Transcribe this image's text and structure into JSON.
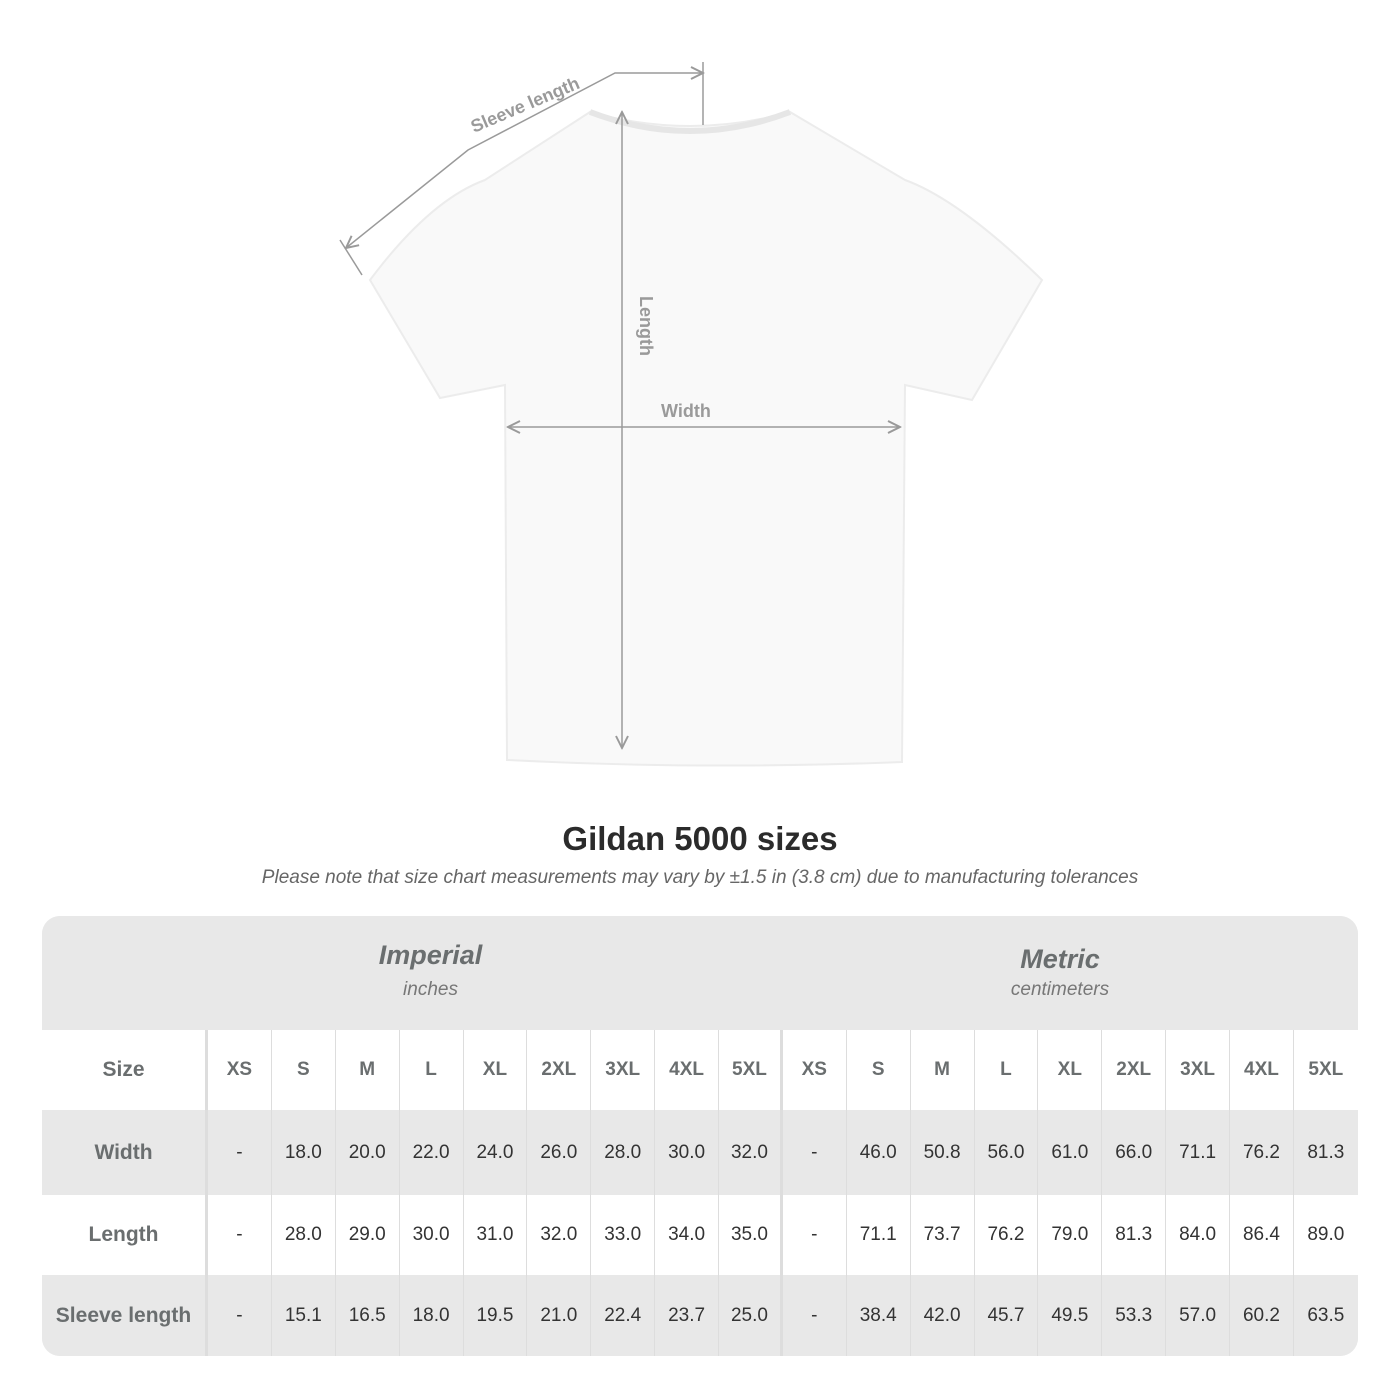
{
  "diagram": {
    "sleeve_label": "Sleeve length",
    "length_label": "Length",
    "width_label": "Width"
  },
  "title": "Gildan 5000 sizes",
  "note": "Please note that size chart measurements may vary by ±1.5 in (3.8 cm) due to manufacturing tolerances",
  "table": {
    "imperial": {
      "name": "Imperial",
      "unit": "inches"
    },
    "metric": {
      "name": "Metric",
      "unit": "centimeters"
    },
    "size_label": "Size",
    "sizes": [
      "XS",
      "S",
      "M",
      "L",
      "XL",
      "2XL",
      "3XL",
      "4XL",
      "5XL"
    ],
    "rows": [
      {
        "label": "Width",
        "imperial": [
          "-",
          "18.0",
          "20.0",
          "22.0",
          "24.0",
          "26.0",
          "28.0",
          "30.0",
          "32.0"
        ],
        "metric": [
          "-",
          "46.0",
          "50.8",
          "56.0",
          "61.0",
          "66.0",
          "71.1",
          "76.2",
          "81.3"
        ]
      },
      {
        "label": "Length",
        "imperial": [
          "-",
          "28.0",
          "29.0",
          "30.0",
          "31.0",
          "32.0",
          "33.0",
          "34.0",
          "35.0"
        ],
        "metric": [
          "-",
          "71.1",
          "73.7",
          "76.2",
          "79.0",
          "81.3",
          "84.0",
          "86.4",
          "89.0"
        ]
      },
      {
        "label": "Sleeve length",
        "imperial": [
          "-",
          "15.1",
          "16.5",
          "18.0",
          "19.5",
          "21.0",
          "22.4",
          "23.7",
          "25.0"
        ],
        "metric": [
          "-",
          "38.4",
          "42.0",
          "45.7",
          "49.5",
          "53.3",
          "57.0",
          "60.2",
          "63.5"
        ]
      }
    ]
  },
  "colors": {
    "band": "#e8e8e8",
    "measure_line": "#9a9a9a",
    "label_text": "#6a6e6f"
  }
}
